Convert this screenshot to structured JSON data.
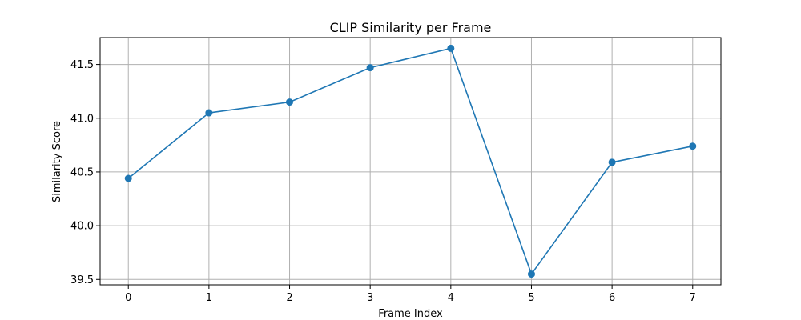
{
  "chart_data": {
    "type": "line",
    "title": "CLIP Similarity per Frame",
    "xlabel": "Frame Index",
    "ylabel": "Similarity Score",
    "x": [
      0,
      1,
      2,
      3,
      4,
      5,
      6,
      7
    ],
    "series": [
      {
        "values": [
          40.44,
          41.05,
          41.15,
          41.47,
          41.65,
          39.55,
          40.59,
          40.74
        ],
        "color": "#1f77b4",
        "marker": "circle"
      }
    ],
    "xlim": [
      -0.35,
      7.35
    ],
    "ylim": [
      39.45,
      41.75
    ],
    "xticks": [
      0,
      1,
      2,
      3,
      4,
      5,
      6,
      7
    ],
    "xtick_labels": [
      "0",
      "1",
      "2",
      "3",
      "4",
      "5",
      "6",
      "7"
    ],
    "yticks": [
      39.5,
      40.0,
      40.5,
      41.0,
      41.5
    ],
    "ytick_labels": [
      "39.5",
      "40.0",
      "40.5",
      "41.0",
      "41.5"
    ],
    "grid": true,
    "legend": false
  }
}
